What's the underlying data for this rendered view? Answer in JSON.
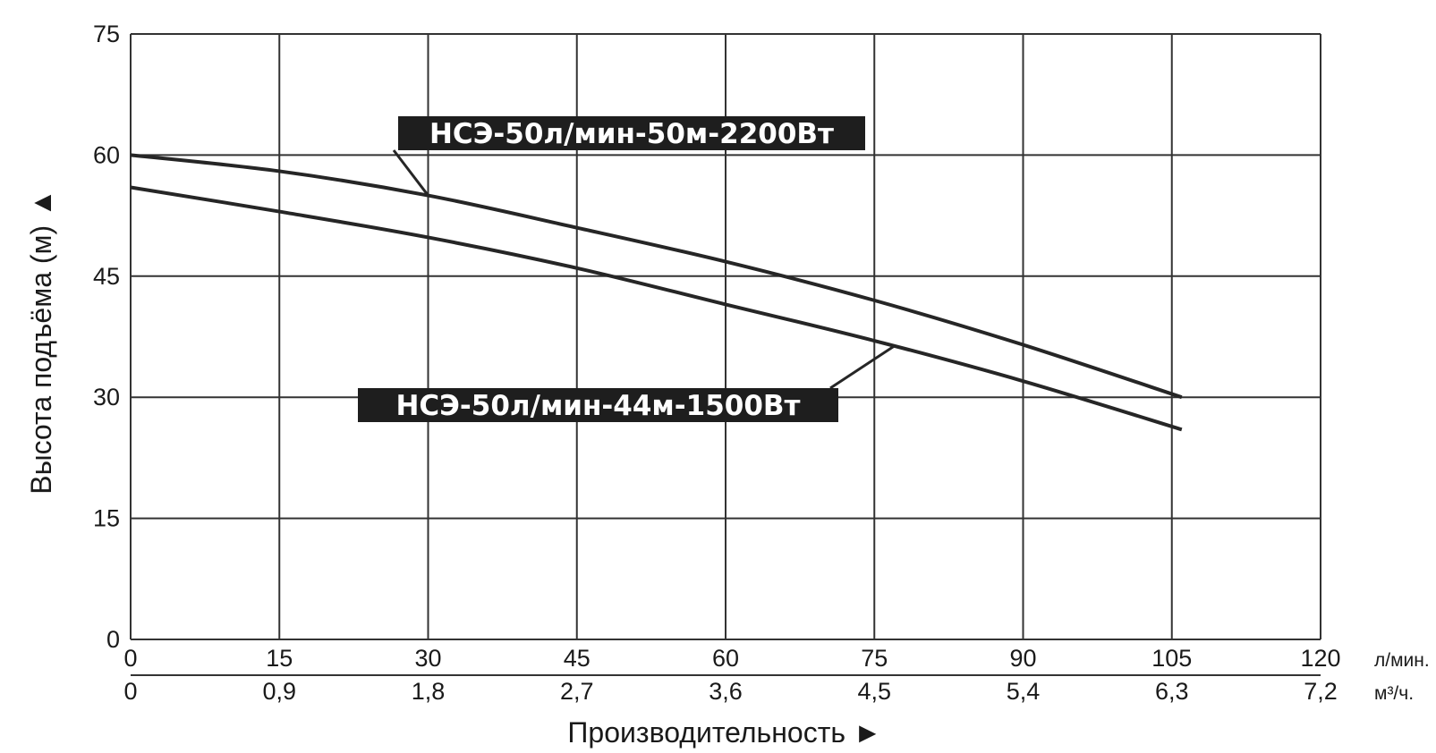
{
  "chart_data": {
    "type": "line",
    "title": "",
    "ylabel": "Высота подъёма (м) ▲",
    "xlabel": "Производительность ►",
    "ylim": [
      0,
      75
    ],
    "xlim": [
      0,
      120
    ],
    "grid": true,
    "y_ticks": [
      "0",
      "15",
      "30",
      "45",
      "60",
      "75"
    ],
    "x_ticks_primary": [
      "0",
      "15",
      "30",
      "45",
      "60",
      "75",
      "90",
      "105",
      "120"
    ],
    "x_unit_primary": "л/мин.",
    "x_ticks_secondary": [
      "0",
      "0,9",
      "1,8",
      "2,7",
      "3,6",
      "4,5",
      "5,4",
      "6,3",
      "7,2"
    ],
    "x_unit_secondary": "м³/ч.",
    "series": [
      {
        "name": "НСЭ-50л/мин-50м-2200Вт",
        "x": [
          0,
          15,
          30,
          45,
          60,
          75,
          90,
          106
        ],
        "values": [
          60,
          58,
          55,
          51,
          46.8,
          42,
          36.5,
          30
        ]
      },
      {
        "name": "НСЭ-50л/мин-44м-1500Вт",
        "x": [
          0,
          15,
          30,
          45,
          60,
          75,
          90,
          106
        ],
        "values": [
          56,
          53,
          49.8,
          46,
          41.5,
          37,
          32,
          26
        ]
      }
    ],
    "colors": {
      "line": "#262626",
      "grid": "#333333",
      "label_bg": "#1e1e1e",
      "label_text": "#ffffff"
    }
  }
}
